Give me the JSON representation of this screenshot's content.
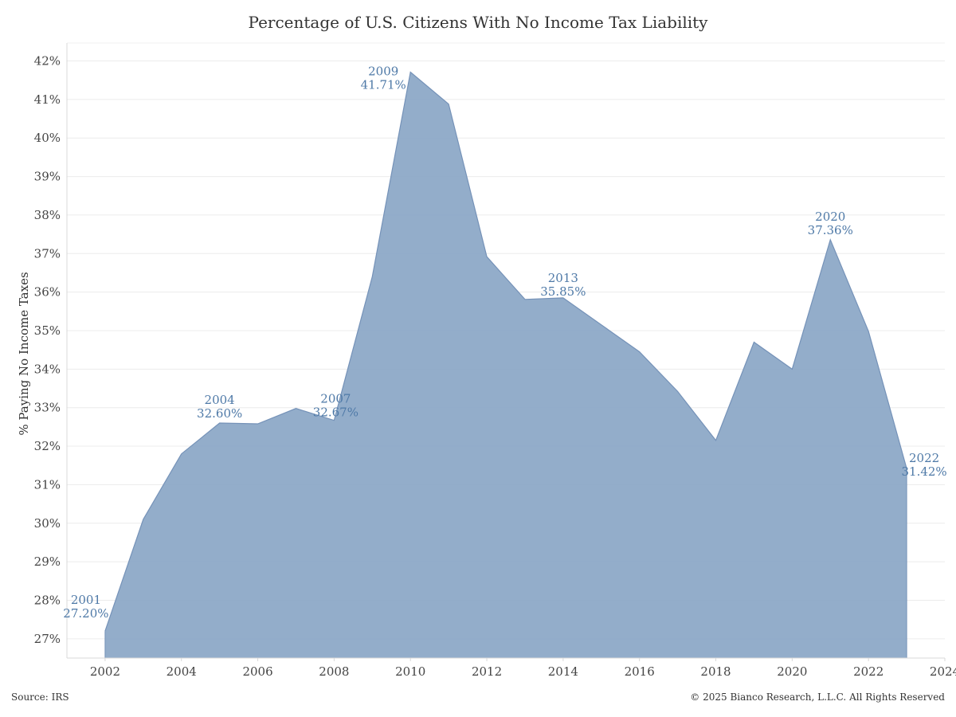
{
  "footer": {
    "source": "Source: IRS",
    "copyright": "© 2025 Bianco Research, L.L.C. All Rights Reserved"
  },
  "chart_data": {
    "type": "area",
    "title": "Percentage of U.S. Citizens With No Income Tax Liability",
    "xlabel": "",
    "ylabel": "% Paying No Income Taxes",
    "x": [
      2001,
      2002,
      2003,
      2004,
      2005,
      2006,
      2007,
      2008,
      2009,
      2010,
      2011,
      2012,
      2013,
      2014,
      2015,
      2016,
      2017,
      2018,
      2019,
      2020,
      2021,
      2022
    ],
    "values": [
      27.2,
      30.1,
      31.8,
      32.6,
      32.58,
      32.98,
      32.67,
      36.4,
      41.71,
      40.88,
      36.92,
      35.81,
      35.85,
      35.15,
      34.45,
      33.42,
      32.15,
      34.7,
      34.0,
      37.36,
      34.98,
      31.42
    ],
    "xlim": [
      2000,
      2023
    ],
    "ylim": [
      26.5,
      42.3
    ],
    "x_ticks": [
      2002,
      2004,
      2006,
      2008,
      2010,
      2012,
      2014,
      2016,
      2018,
      2020,
      2022,
      2024
    ],
    "x_tick_labels": [
      "2002",
      "2004",
      "2006",
      "2008",
      "2010",
      "2012",
      "2014",
      "2016",
      "2018",
      "2020",
      "2022",
      "2024"
    ],
    "y_ticks": [
      27,
      28,
      29,
      30,
      31,
      32,
      33,
      34,
      35,
      36,
      37,
      38,
      39,
      40,
      41,
      42
    ],
    "y_tick_labels": [
      "27%",
      "28%",
      "29%",
      "30%",
      "31%",
      "32%",
      "33%",
      "34%",
      "35%",
      "36%",
      "37%",
      "38%",
      "39%",
      "40%",
      "41%",
      "42%"
    ],
    "grid": "horizontal",
    "fill_color": "#8aa6c6",
    "line_color": "#7592b8",
    "label_color": "#4e79a7",
    "annotations": [
      {
        "x": 2001,
        "y": 27.2,
        "year": "2001",
        "value": "27.20%"
      },
      {
        "x": 2004,
        "y": 32.6,
        "year": "2004",
        "value": "32.60%"
      },
      {
        "x": 2007,
        "y": 32.67,
        "year": "2007",
        "value": "32.67%"
      },
      {
        "x": 2009,
        "y": 41.71,
        "year": "2009",
        "value": "41.71%"
      },
      {
        "x": 2013,
        "y": 35.85,
        "year": "2013",
        "value": "35.85%"
      },
      {
        "x": 2020,
        "y": 37.36,
        "year": "2020",
        "value": "37.36%"
      },
      {
        "x": 2022,
        "y": 31.42,
        "year": "2022",
        "value": "31.42%"
      }
    ]
  }
}
